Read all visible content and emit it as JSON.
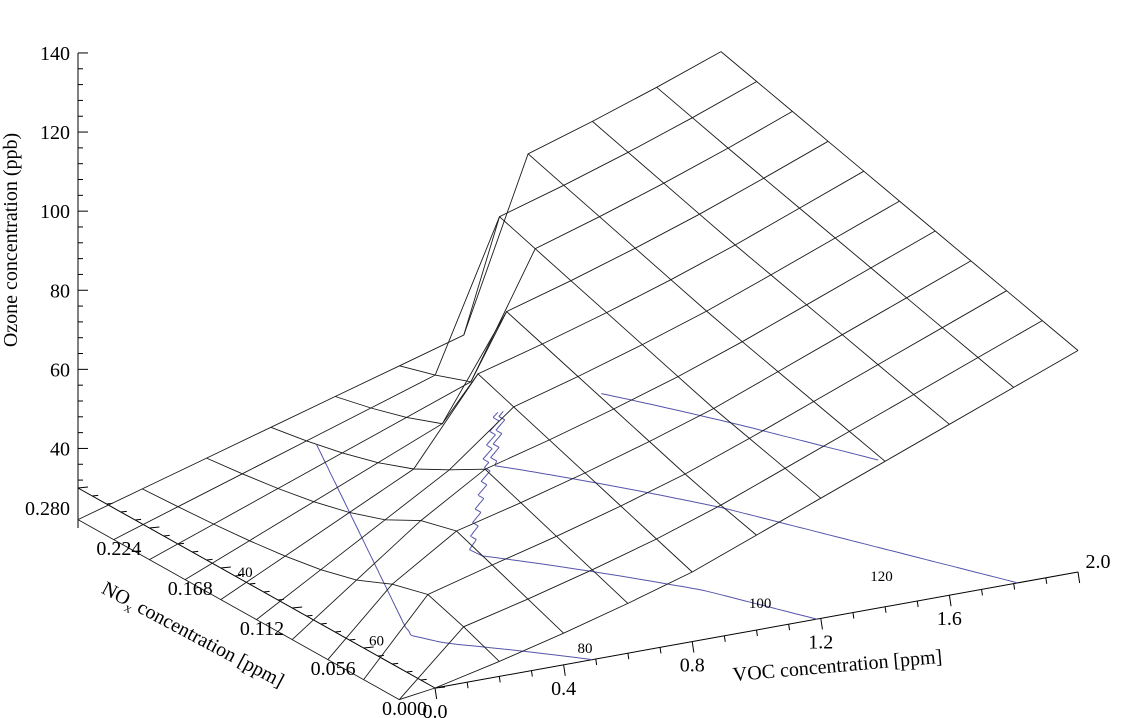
{
  "chart_data": {
    "type": "surface-3d-wireframe",
    "title": "",
    "x_axis": {
      "label": "VOC concentration [ppm]",
      "range": [
        0.0,
        2.0
      ],
      "ticks": [
        "0.0",
        "0.4",
        "0.8",
        "1.2",
        "1.6",
        "2.0"
      ]
    },
    "y_axis": {
      "label_main": "NO",
      "label_sub": "x",
      "label_rest": " concentration [ppm]",
      "range": [
        0.0,
        0.28
      ],
      "ticks": [
        "0.000",
        "0.056",
        "0.112",
        "0.168",
        "0.224",
        "0.280"
      ]
    },
    "z_axis": {
      "label": "Ozone concentration (ppb)",
      "range": [
        30,
        140
      ],
      "ticks": [
        "40",
        "60",
        "80",
        "100",
        "120",
        "140"
      ]
    },
    "contour_labels": [
      "40",
      "60",
      "80",
      "100",
      "120"
    ],
    "contour_levels": [
      40,
      60,
      80,
      100,
      120
    ],
    "grid_size": 11,
    "surface_description": "Ozone rises with VOC; ridge along VOC/NOx ratio ~7, peak ~140 ppb near VOC 2.0, NOx ~0.28; falls to ~30 ppb at low VOC/high NOx"
  }
}
